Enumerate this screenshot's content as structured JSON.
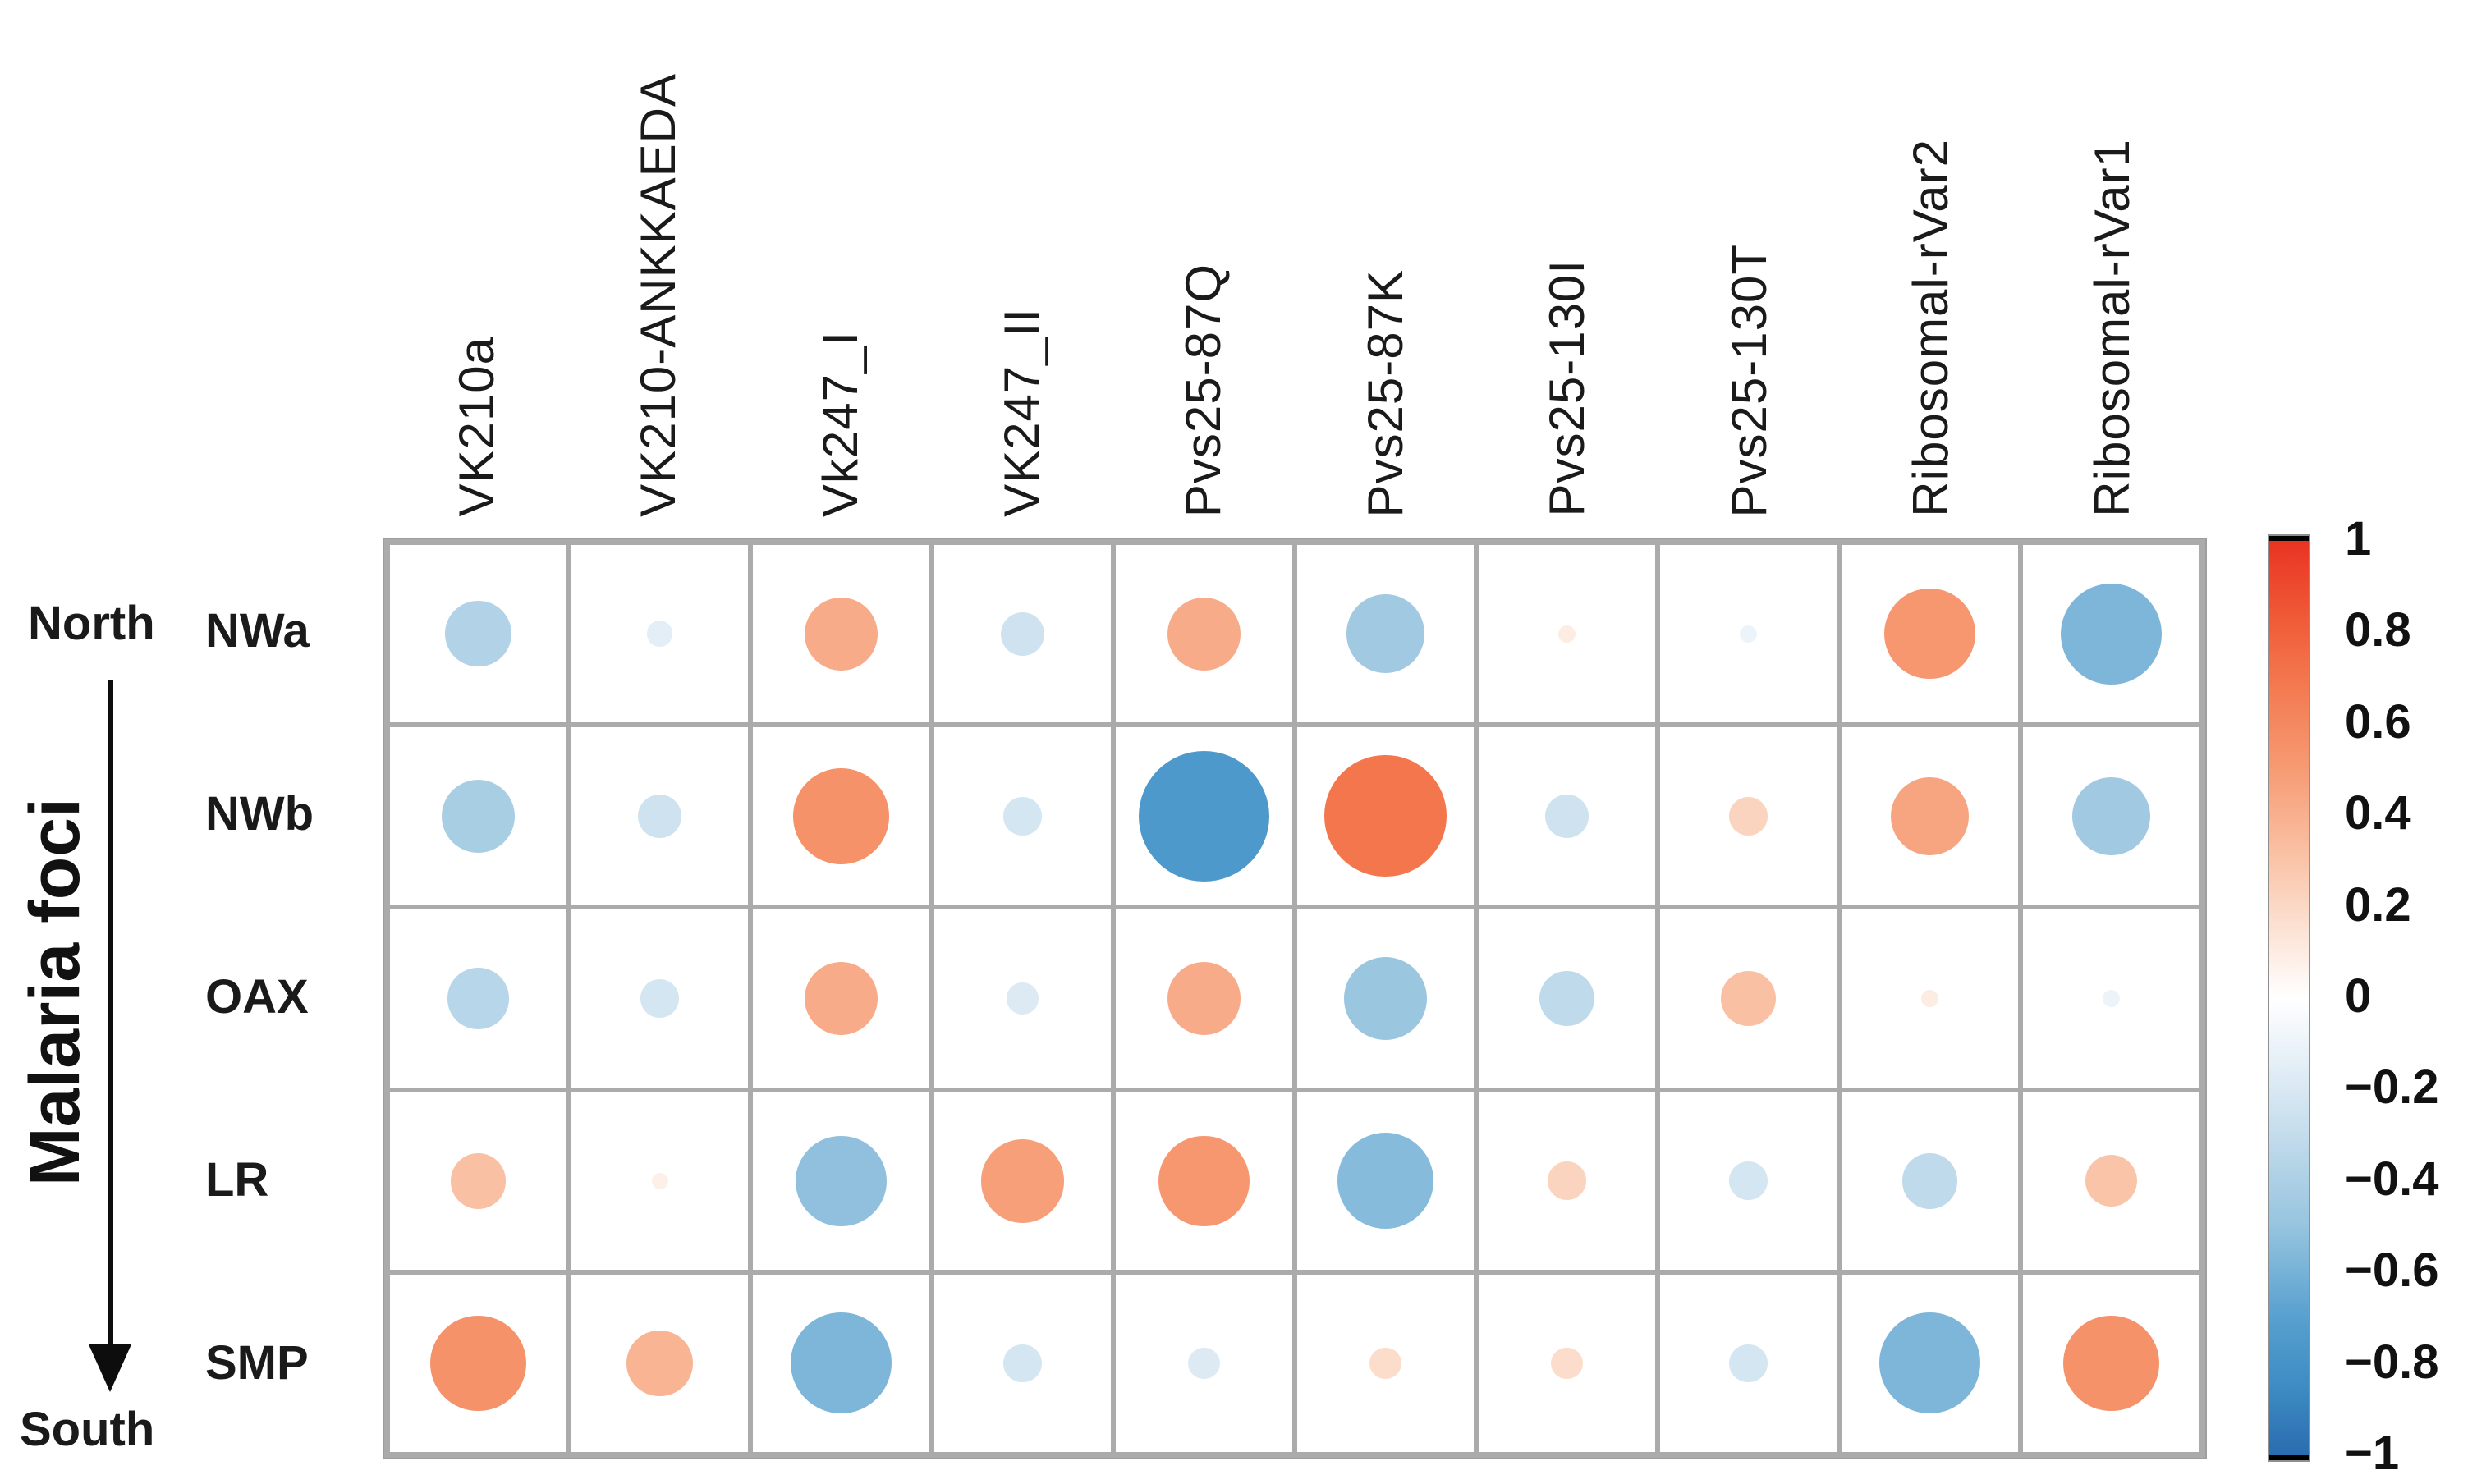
{
  "figure": {
    "north_label": "North",
    "south_label": "South",
    "row_axis_title": "Malaria foci"
  },
  "chart_data": {
    "type": "heatmap",
    "subtype": "correlation-bubble-matrix",
    "title": "",
    "columns": [
      "VK210a",
      "VK210-ANKKAEDA",
      "Vk247_I",
      "VK247_II",
      "Pvs25-87Q",
      "Pvs25-87K",
      "Pvs25-130I",
      "Pvs25-130T",
      "Ribosomal-rVar2",
      "Ribosomal-rVar1"
    ],
    "rows": [
      "NWa",
      "NWb",
      "OAX",
      "LR",
      "SMP"
    ],
    "row_axis_label": "Malaria foci",
    "row_axis_direction": {
      "top": "North",
      "bottom": "South"
    },
    "values": [
      [
        -0.38,
        -0.15,
        0.42,
        -0.25,
        0.42,
        -0.45,
        0.1,
        -0.1,
        0.52,
        -0.58
      ],
      [
        -0.42,
        -0.25,
        0.55,
        -0.22,
        -0.75,
        0.7,
        -0.25,
        0.22,
        0.45,
        -0.45
      ],
      [
        -0.35,
        -0.22,
        0.42,
        -0.18,
        0.42,
        -0.48,
        -0.32,
        0.32,
        0.1,
        -0.1
      ],
      [
        0.32,
        0.08,
        -0.52,
        0.48,
        0.52,
        -0.55,
        0.22,
        -0.22,
        -0.32,
        0.3
      ],
      [
        0.55,
        0.38,
        -0.58,
        -0.22,
        -0.18,
        0.18,
        0.18,
        -0.22,
        -0.58,
        0.55
      ]
    ],
    "value_encoding": "circle size and color encode correlation coefficient",
    "colorbar": {
      "min": -1,
      "max": 1,
      "tick_labels": [
        "1",
        "0.8",
        "0.6",
        "0.4",
        "0.2",
        "0",
        "−0.2",
        "−0.4",
        "−0.6",
        "−0.8",
        "−1"
      ],
      "tick_values": [
        1,
        0.8,
        0.6,
        0.4,
        0.2,
        0,
        -0.2,
        -0.4,
        -0.6,
        -0.8,
        -1
      ],
      "positive_color": "#E93323",
      "zero_color": "#FFFFFF",
      "negative_color": "#2A6CB0"
    },
    "color_stops": [
      [
        -1,
        "#2A6CB0"
      ],
      [
        -0.85,
        "#3D8CC3"
      ],
      [
        -0.7,
        "#57A0CF"
      ],
      [
        -0.5,
        "#96C4DF"
      ],
      [
        -0.3,
        "#C3DCEC"
      ],
      [
        -0.15,
        "#E3EEF6"
      ],
      [
        0,
        "#FFFFFF"
      ],
      [
        0.15,
        "#FCE2D4"
      ],
      [
        0.3,
        "#FAC4A8"
      ],
      [
        0.5,
        "#F69B74"
      ],
      [
        0.7,
        "#F3764D"
      ],
      [
        0.85,
        "#EF5634"
      ],
      [
        1,
        "#E93323"
      ]
    ],
    "grid": true,
    "legend_position": "right"
  }
}
